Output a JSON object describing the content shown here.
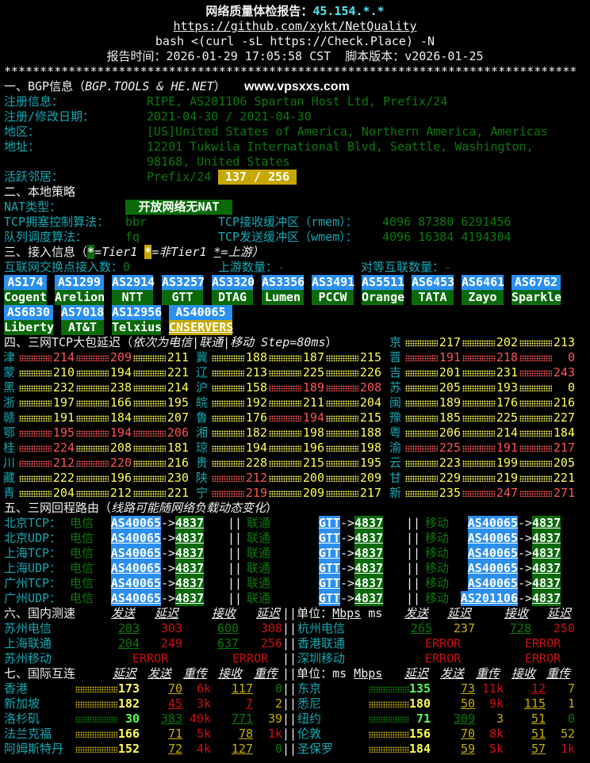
{
  "header": {
    "title_label": "网络质量体检报告：",
    "ip": "45.154.*.*",
    "repo_url": "https://github.com/xykt/NetQuality",
    "command": "bash <(curl -sL https://Check.Place) -N",
    "report_time_label": "报告时间：",
    "report_time": "2026-01-29 17:05:58 CST",
    "version_label": "脚本版本：",
    "version": "v2026-01-25",
    "separator": "********************************************************************************"
  },
  "bgp": {
    "title_prefix": "一、BGP信息（",
    "title_sources": "BGP.TOOLS & HE.NET",
    "title_suffix": "）",
    "watermark": "www.vpsxxs.com",
    "registration_label": "注册信息：",
    "registration": "RIPE, AS201106 Spartan Host Ltd, Prefix/24",
    "dates_label": "注册/修改日期：",
    "dates": "2021-04-30 / 2021-04-30",
    "region_label": "地区：",
    "region": "[US]United States of America, Northern America, Americas",
    "address_label": "地址：",
    "address_line1": "12201 Tukwila International Blvd, Seattle, Washington,",
    "address_line2": "98168, United States",
    "neighbors_label": "活跃邻居：",
    "neighbors_prefix": "Prefix/24",
    "neighbors_value": "137 / 256"
  },
  "local": {
    "title": "二、本地策略",
    "nat_label": "NAT类型：",
    "nat_value": "开放网络无NAT",
    "cc_label": "TCP拥塞控制算法：",
    "cc_value": "bbr",
    "rmem_label": "TCP接收缓冲区（rmem）：",
    "rmem_value": "4096 87380 6291456",
    "qdisc_label": "队列调度算法：",
    "qdisc_value": "fq",
    "wmem_label": "TCP发送缓冲区（wmem）：",
    "wmem_value": "4096 16384 4194304"
  },
  "access": {
    "title_prefix": "三、接入信息（",
    "star": "*",
    "legend_tier1": "=Tier1 ",
    "legend_non_tier1": "=非Tier1 ",
    "legend_upstream": "=上游",
    "title_suffix": "）",
    "ix_label": "互联网交换点接入数：",
    "ix_value": "0",
    "upstream_label": "上游数量：",
    "upstream_value": "-",
    "peer_label": "对等互联数量：",
    "peer_value": "-",
    "as_blocks": [
      {
        "asn": "AS174",
        "name": "Cogent",
        "tier1": true
      },
      {
        "asn": "AS1299",
        "name": "Arelion",
        "tier1": true
      },
      {
        "asn": "AS2914",
        "name": "NTT",
        "tier1": true
      },
      {
        "asn": "AS3257",
        "name": "GTT",
        "tier1": true
      },
      {
        "asn": "AS3320",
        "name": "DTAG",
        "tier1": true
      },
      {
        "asn": "AS3356",
        "name": "Lumen",
        "tier1": true
      },
      {
        "asn": "AS3491",
        "name": "PCCW",
        "tier1": true
      },
      {
        "asn": "AS5511",
        "name": "Orange",
        "tier1": true
      },
      {
        "asn": "AS6453",
        "name": "TATA",
        "tier1": true
      },
      {
        "asn": "AS6461",
        "name": "Zayo",
        "tier1": true
      },
      {
        "asn": "AS6762",
        "name": "Sparkle",
        "tier1": true
      },
      {
        "asn": "AS6830",
        "name": "Liberty",
        "tier1": true
      },
      {
        "asn": "AS7018",
        "name": "AT&T",
        "tier1": true
      },
      {
        "asn": "AS12956",
        "name": "Telxius",
        "tier1": true
      },
      {
        "asn": "AS40065",
        "name": "CNSERVERS",
        "tier1": false,
        "upstream": true
      }
    ]
  },
  "latency": {
    "title_prefix": "四、三网TCP大包延迟（",
    "title_note": "依次为电信|联通|移动 Step=80ms",
    "title_suffix": "）",
    "provinces": [
      {
        "name": "京",
        "values": [
          "217",
          "202",
          "213"
        ],
        "colors": [
          "Y",
          "Y",
          "Y"
        ]
      },
      {
        "name": "津",
        "values": [
          "214",
          "209",
          "211"
        ],
        "colors": [
          "R",
          "R",
          "Y"
        ]
      },
      {
        "name": "冀",
        "values": [
          "188",
          "187",
          "215"
        ],
        "colors": [
          "Y",
          "Y",
          "Y"
        ]
      },
      {
        "name": "晋",
        "values": [
          "191",
          "218",
          "0"
        ],
        "colors": [
          "R",
          "R",
          "R"
        ]
      },
      {
        "name": "蒙",
        "values": [
          "210",
          "194",
          "221"
        ],
        "colors": [
          "Y",
          "Y",
          "Y"
        ]
      },
      {
        "name": "辽",
        "values": [
          "213",
          "225",
          "226"
        ],
        "colors": [
          "Y",
          "Y",
          "Y"
        ]
      },
      {
        "name": "吉",
        "values": [
          "201",
          "231",
          "243"
        ],
        "colors": [
          "Y",
          "Y",
          "R"
        ]
      },
      {
        "name": "黑",
        "values": [
          "232",
          "238",
          "214"
        ],
        "colors": [
          "Y",
          "Y",
          "Y"
        ]
      },
      {
        "name": "沪",
        "values": [
          "158",
          "189",
          "208"
        ],
        "colors": [
          "Y",
          "R",
          "R"
        ]
      },
      {
        "name": "苏",
        "values": [
          "205",
          "193",
          "0"
        ],
        "colors": [
          "Y",
          "Y",
          "Y"
        ]
      },
      {
        "name": "浙",
        "values": [
          "197",
          "166",
          "195"
        ],
        "colors": [
          "Y",
          "Y",
          "Y"
        ]
      },
      {
        "name": "皖",
        "values": [
          "192",
          "211",
          "204"
        ],
        "colors": [
          "Y",
          "Y",
          "Y"
        ]
      },
      {
        "name": "闽",
        "values": [
          "189",
          "176",
          "216"
        ],
        "colors": [
          "Y",
          "Y",
          "Y"
        ]
      },
      {
        "name": "赣",
        "values": [
          "191",
          "184",
          "207"
        ],
        "colors": [
          "Y",
          "Y",
          "Y"
        ]
      },
      {
        "name": "鲁",
        "values": [
          "176",
          "194",
          "215"
        ],
        "colors": [
          "Y",
          "R",
          "Y"
        ]
      },
      {
        "name": "豫",
        "values": [
          "185",
          "225",
          "227"
        ],
        "colors": [
          "Y",
          "Y",
          "Y"
        ]
      },
      {
        "name": "鄂",
        "values": [
          "195",
          "194",
          "206"
        ],
        "colors": [
          "R",
          "R",
          "R"
        ]
      },
      {
        "name": "湘",
        "values": [
          "182",
          "198",
          "188"
        ],
        "colors": [
          "Y",
          "Y",
          "Y"
        ]
      },
      {
        "name": "粤",
        "values": [
          "206",
          "214",
          "184"
        ],
        "colors": [
          "Y",
          "Y",
          "Y"
        ]
      },
      {
        "name": "桂",
        "values": [
          "224",
          "208",
          "181"
        ],
        "colors": [
          "R",
          "Y",
          "Y"
        ]
      },
      {
        "name": "琼",
        "values": [
          "194",
          "196",
          "198"
        ],
        "colors": [
          "Y",
          "Y",
          "Y"
        ]
      },
      {
        "name": "渝",
        "values": [
          "225",
          "191",
          "217"
        ],
        "colors": [
          "R",
          "R",
          "R"
        ]
      },
      {
        "name": "川",
        "values": [
          "212",
          "220",
          "216"
        ],
        "colors": [
          "R",
          "R",
          "Y"
        ]
      },
      {
        "name": "贵",
        "values": [
          "228",
          "215",
          "195"
        ],
        "colors": [
          "Y",
          "Y",
          "Y"
        ]
      },
      {
        "name": "云",
        "values": [
          "223",
          "199",
          "205"
        ],
        "colors": [
          "Y",
          "Y",
          "Y"
        ]
      },
      {
        "name": "藏",
        "values": [
          "222",
          "196",
          "230"
        ],
        "colors": [
          "Y",
          "Y",
          "Y"
        ]
      },
      {
        "name": "陕",
        "values": [
          "212",
          "200",
          "209"
        ],
        "colors": [
          "R",
          "Y",
          "Y"
        ]
      },
      {
        "name": "甘",
        "values": [
          "229",
          "219",
          "221"
        ],
        "colors": [
          "Y",
          "Y",
          "Y"
        ]
      },
      {
        "name": "青",
        "values": [
          "204",
          "212",
          "221"
        ],
        "colors": [
          "Y",
          "Y",
          "Y"
        ]
      },
      {
        "name": "宁",
        "values": [
          "219",
          "209",
          "217"
        ],
        "colors": [
          "R",
          "Y",
          "Y"
        ]
      },
      {
        "name": "新",
        "values": [
          "235",
          "247",
          "271"
        ],
        "colors": [
          "Y",
          "R",
          "R"
        ]
      }
    ]
  },
  "routes": {
    "title_prefix": "五、三网回程路由（",
    "title_note": "线路可能随网络负载动态变化",
    "title_suffix": "）",
    "carriers": [
      "电信",
      "联通",
      "移动"
    ],
    "separator": "||",
    "arrow": "->",
    "rows": [
      {
        "label": "北京TCP：",
        "hops": [
          [
            "AS40065",
            "4837"
          ],
          [
            "GTT",
            "4837"
          ],
          [
            "AS40065",
            "4837"
          ]
        ]
      },
      {
        "label": "北京UDP：",
        "hops": [
          [
            "AS40065",
            "4837"
          ],
          [
            "GTT",
            "4837"
          ],
          [
            "AS40065",
            "4837"
          ]
        ]
      },
      {
        "label": "上海TCP：",
        "hops": [
          [
            "AS40065",
            "4837"
          ],
          [
            "GTT",
            "4837"
          ],
          [
            "AS40065",
            "4837"
          ]
        ]
      },
      {
        "label": "上海UDP：",
        "hops": [
          [
            "AS40065",
            "4837"
          ],
          [
            "GTT",
            "4837"
          ],
          [
            "AS40065",
            "4837"
          ]
        ]
      },
      {
        "label": "广州TCP：",
        "hops": [
          [
            "AS40065",
            "4837"
          ],
          [
            "GTT",
            "4837"
          ],
          [
            "AS40065",
            "4837"
          ]
        ]
      },
      {
        "label": "广州UDP：",
        "hops": [
          [
            "AS40065",
            "4837"
          ],
          [
            "GTT",
            "4837"
          ],
          [
            "AS201106",
            "4837"
          ]
        ]
      }
    ]
  },
  "domestic": {
    "title": "六、国内测速",
    "col_send": "发送",
    "col_latency": "延迟",
    "col_recv": "接收",
    "separator": "||",
    "unit_label": "单位：",
    "unit_mbps": "Mbps",
    "unit_ms": " ms",
    "left": [
      {
        "name": "苏州电信",
        "values": [
          "203",
          "303",
          "600",
          "308"
        ],
        "colors": [
          "g",
          "r",
          "g",
          "r"
        ]
      },
      {
        "name": "上海联通",
        "values": [
          "204",
          "249",
          "637",
          "256"
        ],
        "colors": [
          "g",
          "r",
          "g",
          "r"
        ]
      },
      {
        "name": "苏州移动",
        "send": "ERROR",
        "recv": "ERROR"
      }
    ],
    "right": [
      {
        "name": "杭州电信",
        "values": [
          "265",
          "237",
          "728",
          "250"
        ],
        "colors": [
          "g",
          "y",
          "g",
          "r"
        ]
      },
      {
        "name": "香港联通",
        "send": "ERROR",
        "recv": "ERROR"
      },
      {
        "name": "深圳移动",
        "send": "ERROR",
        "recv": "ERROR"
      }
    ]
  },
  "international": {
    "title": "七、国际互连",
    "col_latency": "延迟",
    "col_send": "发送",
    "col_retrans": "重传",
    "col_recv": "接收",
    "separator": "||",
    "unit_label": "单位：",
    "unit_ms": "ms ",
    "unit_mbps": "Mbps",
    "left": [
      {
        "name": "香港",
        "values": [
          "173",
          "70",
          "6k",
          "117",
          "0"
        ],
        "colors": [
          "Y",
          "y",
          "r",
          "y",
          "g"
        ]
      },
      {
        "name": "新加坡",
        "values": [
          "182",
          "45",
          "3k",
          "7",
          "2"
        ],
        "colors": [
          "Y",
          "r",
          "r",
          "r",
          "y"
        ]
      },
      {
        "name": "洛杉矶",
        "values": [
          "30",
          "383",
          "40k",
          "771",
          "39"
        ],
        "colors": [
          "G",
          "g",
          "r",
          "g",
          "y"
        ]
      },
      {
        "name": "法兰克福",
        "values": [
          "166",
          "71",
          "5k",
          "78",
          "1k"
        ],
        "colors": [
          "Y",
          "y",
          "r",
          "y",
          "r"
        ]
      },
      {
        "name": "阿姆斯特丹",
        "values": [
          "152",
          "72",
          "4k",
          "127",
          "0"
        ],
        "colors": [
          "Y",
          "y",
          "r",
          "y",
          "g"
        ]
      }
    ],
    "right": [
      {
        "name": "东京",
        "values": [
          "135",
          "73",
          "11k",
          "12",
          "7"
        ],
        "colors": [
          "G",
          "y",
          "r",
          "r",
          "y"
        ]
      },
      {
        "name": "悉尼",
        "values": [
          "180",
          "50",
          "9k",
          "115",
          "1"
        ],
        "colors": [
          "Y",
          "y",
          "r",
          "y",
          "y"
        ]
      },
      {
        "name": "纽约",
        "values": [
          "71",
          "309",
          "3",
          "51",
          "0"
        ],
        "colors": [
          "G",
          "g",
          "y",
          "y",
          "g"
        ]
      },
      {
        "name": "伦敦",
        "values": [
          "156",
          "70",
          "8k",
          "51",
          "52"
        ],
        "colors": [
          "Y",
          "y",
          "r",
          "y",
          "y"
        ]
      },
      {
        "name": "圣保罗",
        "values": [
          "184",
          "59",
          "5k",
          "57",
          "1k"
        ],
        "colors": [
          "Y",
          "y",
          "r",
          "y",
          "r"
        ]
      }
    ]
  },
  "colors": {
    "cyan": "#14a9b4",
    "dark_green": "#0b7a0b",
    "bright_green": "#55ff55",
    "yellow": "#ffff55",
    "dark_yellow": "#c8b000",
    "red": "#cc1010",
    "bright_red": "#ff5555",
    "as_blue": "#2b8ff0",
    "badge_green": "#0a6a0a",
    "badge_yellow": "#c8a800"
  }
}
